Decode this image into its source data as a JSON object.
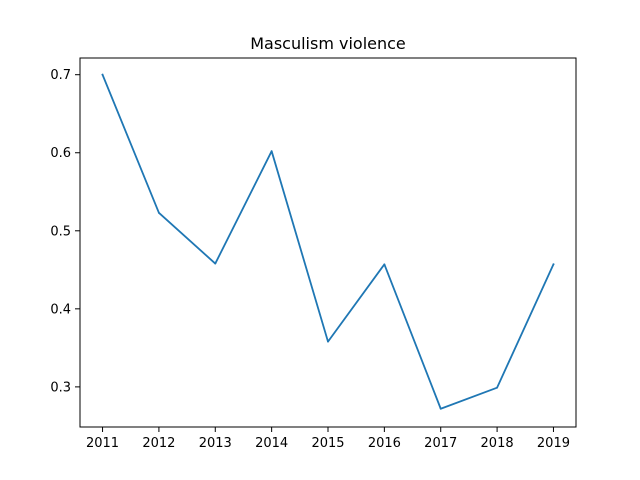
{
  "chart_data": {
    "type": "line",
    "title": "Masculism violence",
    "xlabel": "",
    "ylabel": "",
    "x": [
      2011,
      2012,
      2013,
      2014,
      2015,
      2016,
      2017,
      2018,
      2019
    ],
    "series": [
      {
        "name": "Masculism violence",
        "values": [
          0.7,
          0.523,
          0.458,
          0.602,
          0.358,
          0.457,
          0.272,
          0.299,
          0.457
        ],
        "color": "#1f77b4"
      }
    ],
    "xlim": [
      2010.6,
      2019.4
    ],
    "ylim": [
      0.2486,
      0.7214
    ],
    "xticks": [
      "2011",
      "2012",
      "2013",
      "2014",
      "2015",
      "2016",
      "2017",
      "2018",
      "2019"
    ],
    "yticks": [
      "0.3",
      "0.4",
      "0.5",
      "0.6",
      "0.7"
    ],
    "grid": false,
    "legend": "none"
  }
}
